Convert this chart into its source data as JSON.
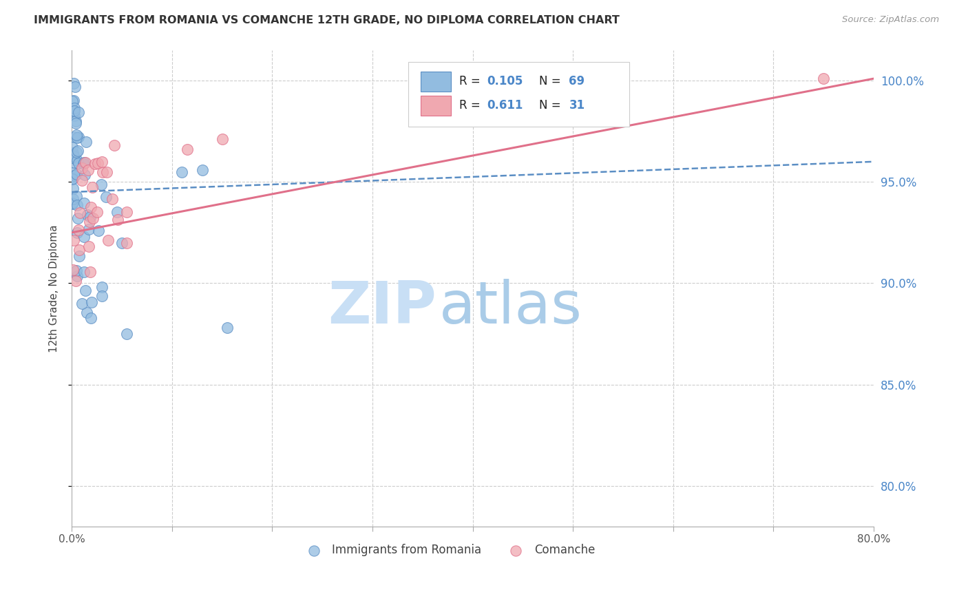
{
  "title": "IMMIGRANTS FROM ROMANIA VS COMANCHE 12TH GRADE, NO DIPLOMA CORRELATION CHART",
  "source": "Source: ZipAtlas.com",
  "ylabel": "12th Grade, No Diploma",
  "xlim": [
    0.0,
    0.8
  ],
  "ylim": [
    0.78,
    1.015
  ],
  "yticks": [
    0.8,
    0.85,
    0.9,
    0.95,
    1.0
  ],
  "xticks": [
    0.0,
    0.1,
    0.2,
    0.3,
    0.4,
    0.5,
    0.6,
    0.7,
    0.8
  ],
  "color_blue": "#92bce0",
  "color_blue_edge": "#5b8ec4",
  "color_blue_line": "#5b8ec4",
  "color_pink": "#f0a8b0",
  "color_pink_edge": "#e0708a",
  "color_pink_line": "#e0708a",
  "color_axis_ticks": "#4a86c8",
  "color_grid": "#cccccc",
  "color_title": "#333333",
  "color_source": "#999999",
  "watermark_zip_color": "#c8dff5",
  "watermark_atlas_color": "#aacce8",
  "blue_line_x0": 0.0,
  "blue_line_y0": 0.945,
  "blue_line_x1": 0.8,
  "blue_line_y1": 0.96,
  "pink_line_x0": 0.0,
  "pink_line_y0": 0.925,
  "pink_line_x1": 0.8,
  "pink_line_y1": 1.001,
  "legend_r1_text": "R = ",
  "legend_r1_val": "0.105",
  "legend_n1_text": "N = ",
  "legend_n1_val": "69",
  "legend_r2_text": "R = ",
  "legend_r2_val": "0.611",
  "legend_n2_text": "N = ",
  "legend_n2_val": "31",
  "legend_text_color": "#222222",
  "legend_val_color": "#4a86c8",
  "bottom_legend_label1": "Immigrants from Romania",
  "bottom_legend_label2": "Comanche"
}
